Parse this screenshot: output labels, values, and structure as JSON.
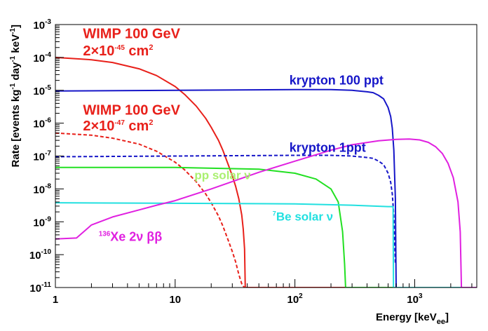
{
  "chart_data": {
    "type": "line",
    "xlabel": "Energy [keV",
    "xlabel_sub": "ee",
    "xlabel_end": "]",
    "ylabel": "Rate [events kg",
    "ylabel_parts": [
      "Rate [events kg",
      "-1",
      " day",
      "-1",
      " keV",
      "-1",
      "]"
    ],
    "x_scale": "log",
    "y_scale": "log",
    "xlim": [
      1,
      3300
    ],
    "ylim": [
      1e-11,
      0.001
    ],
    "x_ticks": [
      {
        "value": 1,
        "label": "1",
        "sup": ""
      },
      {
        "value": 10,
        "label": "10",
        "sup": ""
      },
      {
        "value": 100,
        "label": "10",
        "sup": "2"
      },
      {
        "value": 1000,
        "label": "10",
        "sup": "3"
      }
    ],
    "y_ticks": [
      {
        "value": 0.001,
        "label": "10",
        "sup": "-3"
      },
      {
        "value": 0.0001,
        "label": "10",
        "sup": "-4"
      },
      {
        "value": 1e-05,
        "label": "10",
        "sup": "-5"
      },
      {
        "value": 1e-06,
        "label": "10",
        "sup": "-6"
      },
      {
        "value": 1e-07,
        "label": "10",
        "sup": "-7"
      },
      {
        "value": 1e-08,
        "label": "10",
        "sup": "-8"
      },
      {
        "value": 1e-09,
        "label": "10",
        "sup": "-9"
      },
      {
        "value": 1e-10,
        "label": "10",
        "sup": "-10"
      },
      {
        "value": 1e-11,
        "label": "10",
        "sup": "-11"
      }
    ],
    "series": [
      {
        "key": "wimp45",
        "color": "#e8201a",
        "dash": false,
        "x": [
          1,
          2,
          3,
          5,
          7,
          10,
          12,
          15,
          18,
          20,
          23,
          25,
          28,
          30,
          32,
          34,
          36,
          37,
          38,
          38.5,
          3300
        ],
        "y": [
          0.0001,
          8.5e-05,
          7e-05,
          4.5e-05,
          2.8e-05,
          1.3e-05,
          7.5e-06,
          3.3e-06,
          1.4e-06,
          7.5e-07,
          3e-07,
          1.5e-07,
          5e-08,
          2.5e-08,
          1.2e-08,
          5e-09,
          1.6e-09,
          6e-10,
          1.5e-10,
          1e-11,
          1e-11
        ]
      },
      {
        "key": "wimp47",
        "color": "#e8201a",
        "dash": true,
        "x": [
          1,
          2,
          3,
          5,
          7,
          10,
          12,
          15,
          18,
          20,
          23,
          25,
          28,
          30,
          32,
          34,
          36,
          37,
          38
        ],
        "y": [
          5e-07,
          4.3e-07,
          3.5e-07,
          2.3e-07,
          1.4e-07,
          6.5e-08,
          3.8e-08,
          1.65e-08,
          7e-09,
          3.8e-09,
          1.5e-09,
          7.5e-10,
          2.5e-10,
          1.25e-10,
          6e-11,
          2.5e-11,
          1.3e-11,
          1.1e-11,
          1e-11
        ]
      },
      {
        "key": "kr100",
        "color": "#1616c8",
        "dash": false,
        "x": [
          1,
          100,
          200,
          300,
          400,
          450,
          500,
          550,
          600,
          630,
          650,
          670,
          690,
          700,
          710,
          3300
        ],
        "y": [
          9.5e-06,
          1.05e-05,
          1.05e-05,
          1e-05,
          9e-06,
          8.5e-06,
          7e-06,
          5.5e-06,
          3e-06,
          1.6e-06,
          7e-07,
          1.5e-07,
          5e-09,
          1e-11,
          1e-11,
          1e-11
        ]
      },
      {
        "key": "kr1",
        "color": "#1616c8",
        "dash": true,
        "x": [
          1,
          100,
          200,
          300,
          400,
          450,
          500,
          550,
          600,
          630,
          650,
          670,
          690
        ],
        "y": [
          9.5e-08,
          1.05e-07,
          1.05e-07,
          1e-07,
          9e-08,
          8.5e-08,
          7e-08,
          5.5e-08,
          3e-08,
          1.6e-08,
          7e-09,
          1.5e-09,
          5e-11
        ]
      },
      {
        "key": "pp",
        "color": "#22e022",
        "dash": false,
        "x": [
          1,
          10,
          50,
          100,
          150,
          200,
          230,
          250,
          260,
          265,
          3300
        ],
        "y": [
          4.5e-08,
          4.5e-08,
          4e-08,
          3e-08,
          2e-08,
          1e-08,
          4e-09,
          5e-10,
          5e-11,
          1e-11,
          1e-11
        ]
      },
      {
        "key": "be7",
        "color": "#22e0e0",
        "dash": false,
        "x": [
          1,
          100,
          300,
          600,
          660,
          665,
          3300
        ],
        "y": [
          3.8e-09,
          3.5e-09,
          3.2e-09,
          2.9e-09,
          2.9e-09,
          1e-11,
          1e-11
        ]
      },
      {
        "key": "xe136",
        "color": "#e020e0",
        "dash": false,
        "x": [
          1,
          1.5,
          2,
          3,
          5,
          7,
          10,
          20,
          50,
          100,
          200,
          300,
          500,
          700,
          900,
          1100,
          1300,
          1500,
          1700,
          1900,
          2100,
          2300,
          2400,
          2458,
          3300
        ],
        "y": [
          3e-10,
          3.2e-10,
          8e-10,
          1.4e-09,
          2.3e-09,
          3.2e-09,
          4.4e-09,
          1e-08,
          3.2e-08,
          7e-08,
          1.5e-07,
          2.2e-07,
          2.9e-07,
          3.2e-07,
          3.3e-07,
          3.1e-07,
          2.6e-07,
          1.9e-07,
          1.2e-07,
          6e-08,
          2.2e-08,
          4e-09,
          5e-10,
          1e-11,
          1e-11
        ]
      }
    ],
    "annotations": [
      {
        "key": "wimp45-label-1",
        "lines": [
          {
            "text": "WIMP 100 GeV"
          }
        ],
        "color": "#e8201a",
        "ax": 1.7,
        "ay": 0.00038,
        "size": 20
      },
      {
        "key": "wimp45-label-2",
        "lines": [
          {
            "text": "2×10",
            "sup": "-45",
            "tail": " cm",
            "tailsup": "2"
          }
        ],
        "color": "#e8201a",
        "ax": 1.7,
        "ay": 0.000115,
        "size": 20
      },
      {
        "key": "wimp47-label-1",
        "lines": [
          {
            "text": "WIMP 100 GeV"
          }
        ],
        "color": "#e8201a",
        "ax": 1.7,
        "ay": 1.8e-06,
        "size": 20
      },
      {
        "key": "wimp47-label-2",
        "lines": [
          {
            "text": "2×10",
            "sup": "-47",
            "tail": " cm",
            "tailsup": "2"
          }
        ],
        "color": "#e8201a",
        "ax": 1.7,
        "ay": 6e-07,
        "size": 20
      },
      {
        "key": "kr100-label",
        "lines": [
          {
            "text": "krypton 100 ppt"
          }
        ],
        "color": "#1616c8",
        "ax": 90,
        "ay": 1.5e-05,
        "size": 18
      },
      {
        "key": "kr1-label",
        "lines": [
          {
            "text": "krypton 1ppt"
          }
        ],
        "color": "#1616c8",
        "ax": 90,
        "ay": 1.35e-07,
        "size": 18
      },
      {
        "key": "pp-label",
        "lines": [
          {
            "text": "pp solar ν"
          }
        ],
        "color": "#aaf070",
        "ax": 14.5,
        "ay": 2e-08,
        "size": 17
      },
      {
        "key": "be7-label",
        "lines": [
          {
            "presup": "7",
            "text": "Be solar ν"
          }
        ],
        "color": "#22e0e0",
        "ax": 65,
        "ay": 1.1e-09,
        "size": 17
      },
      {
        "key": "xe-label",
        "lines": [
          {
            "presup": "136",
            "text": "Xe 2ν ββ"
          }
        ],
        "color": "#e020e0",
        "ax": 2.3,
        "ay": 2.6e-10,
        "size": 18
      }
    ]
  }
}
